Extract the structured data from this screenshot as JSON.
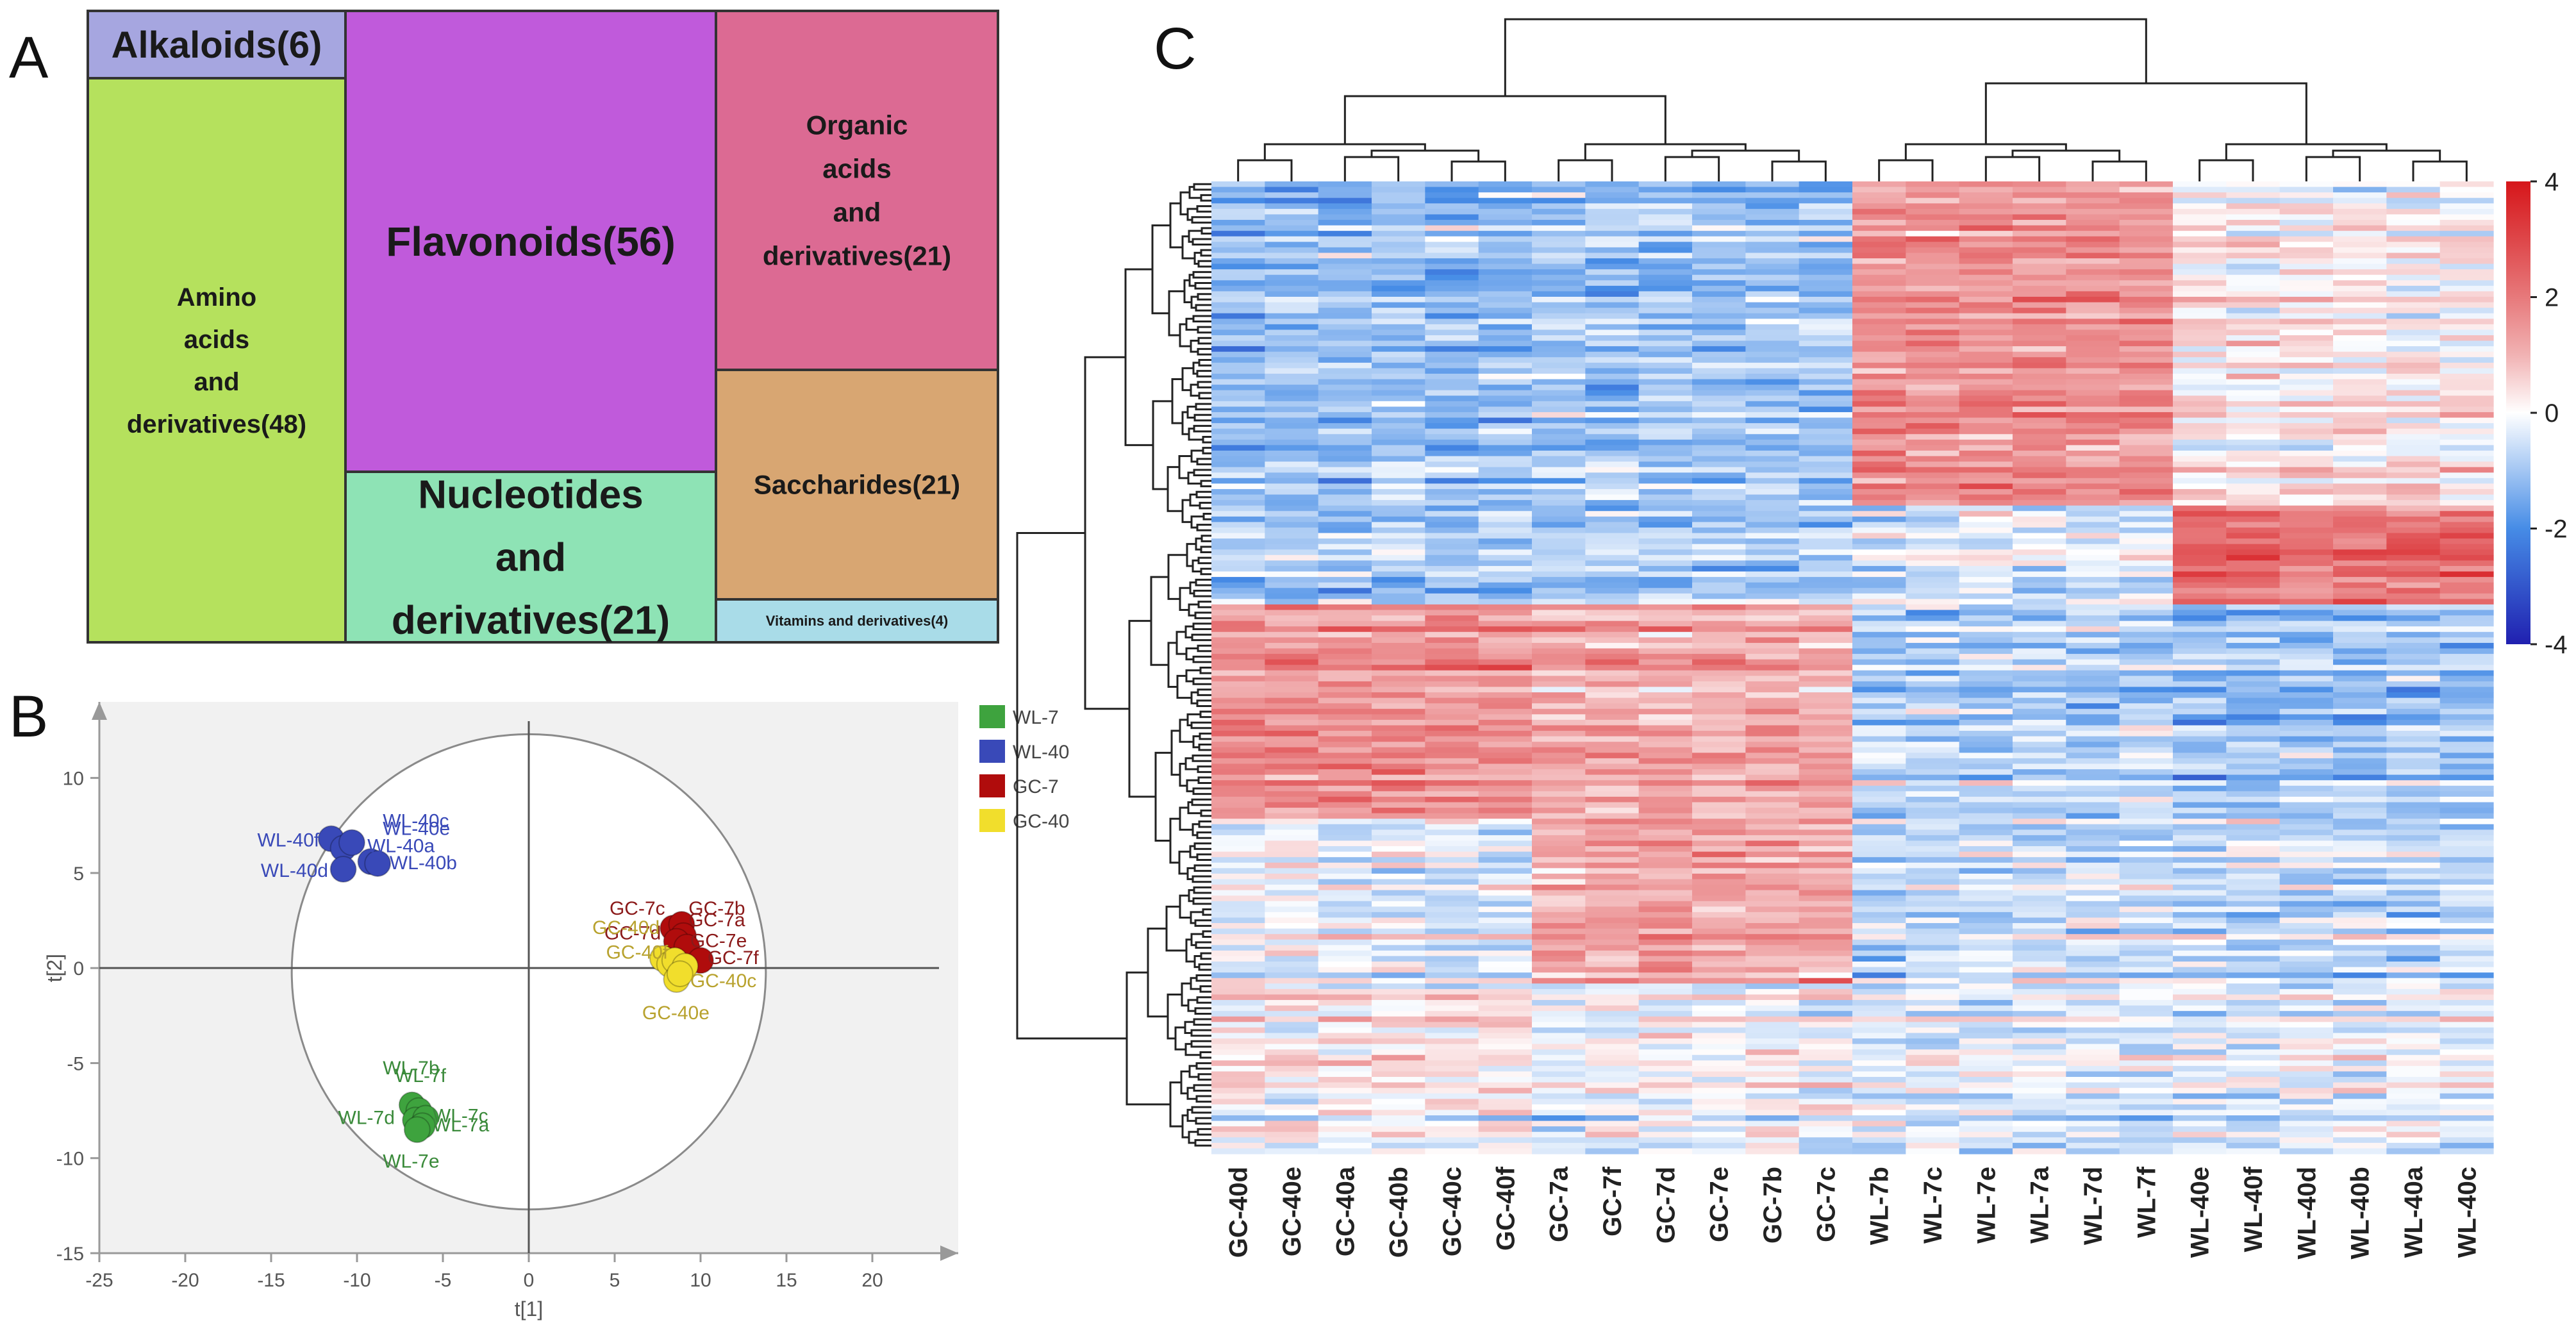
{
  "panels": {
    "a": "A",
    "b": "B",
    "c": "C"
  },
  "treemap": {
    "tiles": [
      {
        "label_lines": [
          "Alkaloids(6)"
        ],
        "count": 6,
        "color": "#a6a6e0"
      },
      {
        "label_lines": [
          "Amino",
          "acids",
          "and",
          "derivatives(48)"
        ],
        "count": 48,
        "color": "#b5e15d"
      },
      {
        "label_lines": [
          "Flavonoids(56)"
        ],
        "count": 56,
        "color": "#c05adb"
      },
      {
        "label_lines": [
          "Nucleotides",
          "and",
          "derivatives(21)"
        ],
        "count": 21,
        "color": "#8ee3b5"
      },
      {
        "label_lines": [
          "Organic",
          "acids",
          "and",
          "derivatives(21)"
        ],
        "count": 21,
        "color": "#dc6a93"
      },
      {
        "label_lines": [
          "Saccharides(21)"
        ],
        "count": 21,
        "color": "#d8a672"
      },
      {
        "label_lines": [
          "Vitamins and derivatives(4)"
        ],
        "count": 4,
        "color": "#a9dce8"
      }
    ]
  },
  "pca": {
    "x_ticks": [
      "-25",
      "-20",
      "-15",
      "-10",
      "-5",
      "0",
      "5",
      "10",
      "15",
      "20"
    ],
    "y_ticks": [
      "10",
      "5",
      "0",
      "-5",
      "-10",
      "-15"
    ],
    "xlabel": "t[1]",
    "ylabel": "t[2]",
    "legend": [
      {
        "name": "WL-7",
        "color": "#3ea33e"
      },
      {
        "name": "WL-40",
        "color": "#3949b8"
      },
      {
        "name": "GC-7",
        "color": "#b00c0c"
      },
      {
        "name": "GC-40",
        "color": "#f1de2c"
      }
    ],
    "labels": {
      "wl40": [
        "WL-40c",
        "WL-40e",
        "WL-40f",
        "WL-40a",
        "WL-40d",
        "WL-40b"
      ],
      "gc7": [
        "GC-7c",
        "GC-7b",
        "GC-7a",
        "GC-7d",
        "GC-7e",
        "GC-7f"
      ],
      "gc40": [
        "GC-40d",
        "GC-40f",
        "GC-40c",
        "GC-40e"
      ],
      "wl7": [
        "WL-7b",
        "WL-7f",
        "WL-7d",
        "WL-7c",
        "WL-7a",
        "WL-7e"
      ]
    }
  },
  "heatmap": {
    "columns": [
      "GC-40d",
      "GC-40e",
      "GC-40a",
      "GC-40b",
      "GC-40c",
      "GC-40f",
      "GC-7a",
      "GC-7f",
      "GC-7d",
      "GC-7e",
      "GC-7b",
      "GC-7c",
      "WL-7b",
      "WL-7c",
      "WL-7e",
      "WL-7a",
      "WL-7d",
      "WL-7f",
      "WL-40e",
      "WL-40f",
      "WL-40d",
      "WL-40b",
      "WL-40a",
      "WL-40c"
    ],
    "colorbar_ticks": [
      "4",
      "2",
      "0",
      "-2",
      "-4"
    ]
  },
  "chart_data": [
    {
      "type": "treemap",
      "title": "",
      "categories": [
        "Alkaloids",
        "Amino acids and derivatives",
        "Flavonoids",
        "Nucleotides and derivatives",
        "Organic acids and derivatives",
        "Saccharides",
        "Vitamins and derivatives"
      ],
      "values": [
        6,
        48,
        56,
        21,
        21,
        21,
        4
      ]
    },
    {
      "type": "scatter",
      "title": "",
      "xlabel": "t[1]",
      "ylabel": "t[2]",
      "xlim": [
        -25,
        25
      ],
      "ylim": [
        -15,
        14
      ],
      "series": [
        {
          "name": "WL-40",
          "color": "#3949b8",
          "points": [
            {
              "label": "WL-40f",
              "x": -11.5,
              "y": 6.8
            },
            {
              "label": "WL-40e",
              "x": -10.8,
              "y": 6.3
            },
            {
              "label": "WL-40c",
              "x": -10.3,
              "y": 6.6
            },
            {
              "label": "WL-40a",
              "x": -9.2,
              "y": 5.6
            },
            {
              "label": "WL-40d",
              "x": -10.8,
              "y": 5.2
            },
            {
              "label": "WL-40b",
              "x": -8.8,
              "y": 5.5
            }
          ]
        },
        {
          "name": "GC-7",
          "color": "#b00c0c",
          "points": [
            {
              "label": "GC-7c",
              "x": 8.4,
              "y": 2.1
            },
            {
              "label": "GC-7b",
              "x": 8.9,
              "y": 2.3
            },
            {
              "label": "GC-7a",
              "x": 9.0,
              "y": 1.7
            },
            {
              "label": "GC-7d",
              "x": 8.6,
              "y": 1.4
            },
            {
              "label": "GC-7e",
              "x": 9.2,
              "y": 1.1
            },
            {
              "label": "GC-7f",
              "x": 10.0,
              "y": 0.4
            }
          ]
        },
        {
          "name": "GC-40",
          "color": "#f1de2c",
          "points": [
            {
              "label": "GC-40d",
              "x": 7.8,
              "y": 0.5
            },
            {
              "label": "GC-40a",
              "x": 8.2,
              "y": 0.2
            },
            {
              "label": "GC-40b",
              "x": 8.5,
              "y": 0.4
            },
            {
              "label": "GC-40f",
              "x": 9.1,
              "y": 0.1
            },
            {
              "label": "GC-40c",
              "x": 8.6,
              "y": -0.6
            },
            {
              "label": "GC-40e",
              "x": 8.8,
              "y": -0.3
            }
          ]
        },
        {
          "name": "WL-7",
          "color": "#3ea33e",
          "points": [
            {
              "label": "WL-7b",
              "x": -6.8,
              "y": -7.2
            },
            {
              "label": "WL-7f",
              "x": -6.4,
              "y": -7.5
            },
            {
              "label": "WL-7d",
              "x": -6.6,
              "y": -8.0
            },
            {
              "label": "WL-7c",
              "x": -6.0,
              "y": -7.9
            },
            {
              "label": "WL-7a",
              "x": -6.2,
              "y": -8.3
            },
            {
              "label": "WL-7e",
              "x": -6.5,
              "y": -8.5
            }
          ]
        }
      ]
    },
    {
      "type": "heatmap",
      "title": "",
      "columns": [
        "GC-40d",
        "GC-40e",
        "GC-40a",
        "GC-40b",
        "GC-40c",
        "GC-40f",
        "GC-7a",
        "GC-7f",
        "GC-7d",
        "GC-7e",
        "GC-7b",
        "GC-7c",
        "WL-7b",
        "WL-7c",
        "WL-7e",
        "WL-7a",
        "WL-7d",
        "WL-7f",
        "WL-40e",
        "WL-40f",
        "WL-40d",
        "WL-40b",
        "WL-40a",
        "WL-40c"
      ],
      "row_count": 177,
      "color_range": [
        -4,
        4
      ],
      "colorbar_ticks": [
        4,
        2,
        0,
        -2,
        -4
      ],
      "color_low": "#2020b0",
      "color_mid": "#ffffff",
      "color_high": "#d6161a",
      "cluster_pattern_by_row_fraction": [
        {
          "rows": [
            0.0,
            0.33
          ],
          "GC-40": -1.1,
          "GC-7": -1.0,
          "WL-7": 1.6,
          "WL-40": 0.2
        },
        {
          "rows": [
            0.33,
            0.43
          ],
          "GC-40": -0.9,
          "GC-7": -0.8,
          "WL-7": -0.3,
          "WL-40": 2.2
        },
        {
          "rows": [
            0.43,
            0.65
          ],
          "GC-40": 1.6,
          "GC-7": 1.2,
          "WL-7": -0.8,
          "WL-40": -1.1
        },
        {
          "rows": [
            0.65,
            0.82
          ],
          "GC-40": -0.2,
          "GC-7": 1.3,
          "WL-7": -0.5,
          "WL-40": -0.6
        },
        {
          "rows": [
            0.82,
            1.0
          ],
          "GC-40": 0.1,
          "GC-7": -0.2,
          "WL-7": -0.4,
          "WL-40": -0.3
        }
      ]
    }
  ]
}
